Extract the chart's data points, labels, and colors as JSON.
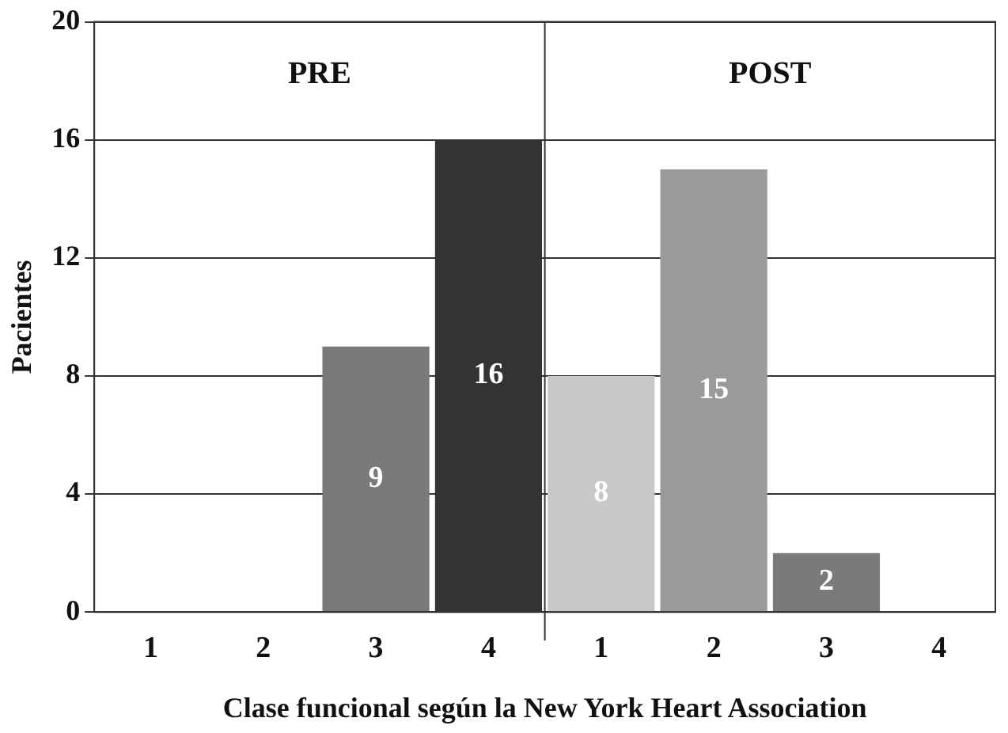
{
  "chart_data": {
    "type": "bar",
    "xlabel": "Clase funcional según la New York Heart Association",
    "ylabel": "Pacientes",
    "categories": [
      "1",
      "2",
      "3",
      "4",
      "1",
      "2",
      "3",
      "4"
    ],
    "values": [
      0,
      0,
      9,
      16,
      8,
      15,
      2,
      0
    ],
    "colors": [
      "#7a7a7a",
      "#7a7a7a",
      "#7a7a7a",
      "#333333",
      "#c8c8c8",
      "#9a9a9a",
      "#7a7a7a",
      "#7a7a7a"
    ],
    "value_labels": [
      null,
      null,
      "9",
      "16",
      "8",
      "15",
      "2",
      null
    ],
    "annotations": [
      "PRE",
      "POST"
    ],
    "ylim": [
      0,
      20
    ],
    "yticks": [
      0,
      4,
      8,
      12,
      16,
      20
    ],
    "grid": "y",
    "legend": false
  }
}
